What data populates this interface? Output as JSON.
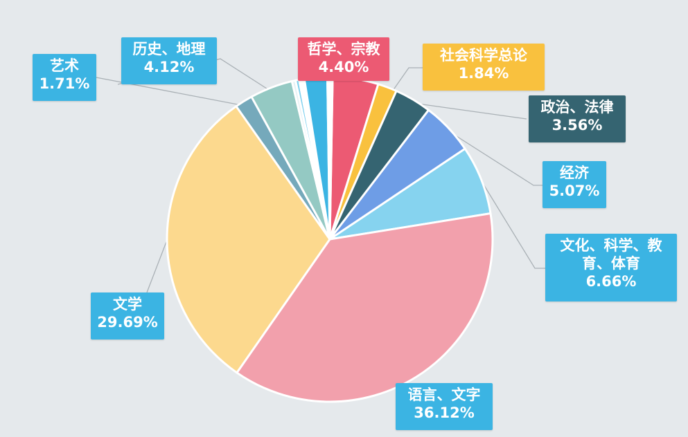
{
  "chart_data": {
    "type": "pie",
    "title": "",
    "slices": [
      {
        "label": "哲学、宗教",
        "value": 4.4,
        "display": "4.40%",
        "color": "#ec5a73",
        "box_color": "#ec5a73",
        "text_color": "#ffffff"
      },
      {
        "label": "社会科学总论",
        "value": 1.84,
        "display": "1.84%",
        "color": "#f9c13e",
        "box_color": "#f9c13e",
        "text_color": "#ffffff"
      },
      {
        "label": "政治、法律",
        "value": 3.56,
        "display": "3.56%",
        "color": "#356471",
        "box_color": "#356471",
        "text_color": "#ffffff"
      },
      {
        "label": "经济",
        "value": 5.07,
        "display": "5.07%",
        "color": "#6e9de6",
        "box_color": "#3bb4e3",
        "text_color": "#ffffff"
      },
      {
        "label": "文化、科学、教育、体育",
        "value": 6.66,
        "display": "6.66%",
        "color": "#86d3ef",
        "box_color": "#3bb4e3",
        "text_color": "#ffffff"
      },
      {
        "label": "语言、文字",
        "value": 36.12,
        "display": "36.12%",
        "color": "#f2a0ac",
        "box_color": "#3bb4e3",
        "text_color": "#ffffff"
      },
      {
        "label": "文学",
        "value": 29.69,
        "display": "29.69%",
        "color": "#fcd98e",
        "box_color": "#3bb4e3",
        "text_color": "#ffffff"
      },
      {
        "label": "艺术",
        "value": 1.71,
        "display": "1.71%",
        "color": "#75a9bb",
        "box_color": "#3bb4e3",
        "text_color": "#ffffff"
      },
      {
        "label": "历史、地理",
        "value": 4.12,
        "display": "4.12%",
        "color": "#94c9c3",
        "box_color": "#3bb4e3",
        "text_color": "#ffffff"
      },
      {
        "label": "",
        "value": 0.35,
        "display": "",
        "color": "#e6f1f5",
        "box_color": "",
        "text_color": ""
      },
      {
        "label": "",
        "value": 0.35,
        "display": "",
        "color": "#7fd0ee",
        "box_color": "",
        "text_color": ""
      },
      {
        "label": "",
        "value": 0.5,
        "display": "",
        "color": "#ffffff",
        "box_color": "",
        "text_color": ""
      },
      {
        "label": "",
        "value": 2.2,
        "display": "",
        "color": "#3bb4e3",
        "box_color": "",
        "text_color": ""
      },
      {
        "label": "",
        "value": 0.5,
        "display": "",
        "color": "#ffffff",
        "box_color": "",
        "text_color": ""
      }
    ],
    "legend": "callout-labels",
    "grid": false,
    "start": "top",
    "direction": "clockwise"
  }
}
